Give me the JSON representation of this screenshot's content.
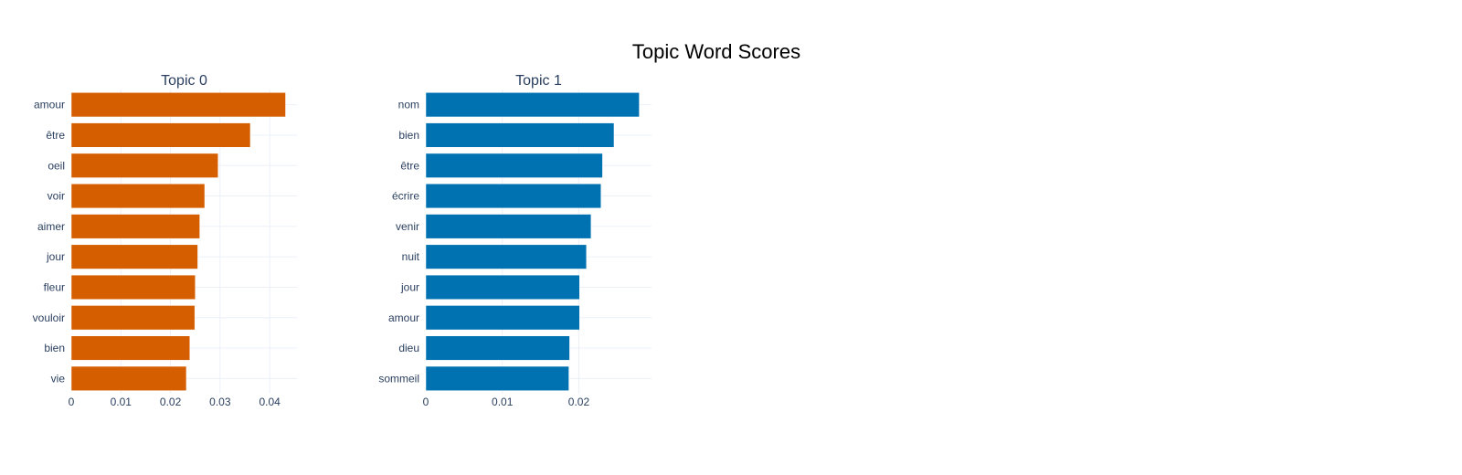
{
  "title": "Topic Word Scores",
  "chart_data": [
    {
      "type": "bar",
      "orientation": "horizontal",
      "title": "Topic 0",
      "color": "#D55E00",
      "categories": [
        "amour",
        "être",
        "oeil",
        "voir",
        "aimer",
        "jour",
        "fleur",
        "vouloir",
        "bien",
        "vie"
      ],
      "values": [
        0.0432,
        0.0361,
        0.0296,
        0.0269,
        0.0259,
        0.0255,
        0.025,
        0.0249,
        0.0239,
        0.0232
      ],
      "xlim": [
        0,
        0.0455
      ],
      "xticks": [
        0,
        0.01,
        0.02,
        0.03,
        0.04
      ],
      "xtick_labels": [
        "0",
        "0.01",
        "0.02",
        "0.03",
        "0.04"
      ],
      "grid": true
    },
    {
      "type": "bar",
      "orientation": "horizontal",
      "title": "Topic 1",
      "color": "#0072B2",
      "categories": [
        "nom",
        "bien",
        "être",
        "écrire",
        "venir",
        "nuit",
        "jour",
        "amour",
        "dieu",
        "sommeil"
      ],
      "values": [
        0.0279,
        0.0246,
        0.0231,
        0.0229,
        0.0216,
        0.021,
        0.0201,
        0.0201,
        0.0188,
        0.0187
      ],
      "xlim": [
        0,
        0.0295
      ],
      "xticks": [
        0,
        0.01,
        0.02
      ],
      "xtick_labels": [
        "0",
        "0.01",
        "0.02"
      ],
      "grid": true
    }
  ]
}
